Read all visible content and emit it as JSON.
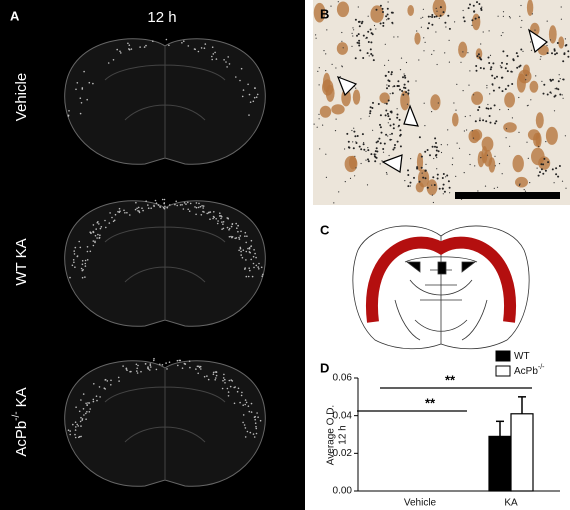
{
  "panels": {
    "a": {
      "label": "A",
      "time": "12 h",
      "rows": [
        "Vehicle",
        "WT KA"
      ],
      "ko": [
        "AcPb",
        "-/-",
        "KA"
      ]
    },
    "b": {
      "label": "B"
    },
    "c": {
      "label": "C"
    },
    "d": {
      "label": "D"
    }
  },
  "chart_data": {
    "type": "bar",
    "ylabel": [
      "Average O.D.",
      "12 h"
    ],
    "categories": [
      "Vehicle",
      "KA"
    ],
    "series": [
      {
        "name": "WT",
        "color": "#000000",
        "values": [
          0,
          0.029
        ],
        "errors": [
          null,
          0.008
        ]
      },
      {
        "name": "AcPb",
        "name_sup": "-/-",
        "color": "#ffffff",
        "values": [
          0,
          0.041
        ],
        "errors": [
          null,
          0.009
        ]
      }
    ],
    "ylim": [
      0,
      0.06
    ],
    "yticks": [
      {
        "value": 0,
        "label": "0.00"
      },
      0.02,
      0.04,
      0.06
    ],
    "annotations": [
      "**",
      "**"
    ]
  }
}
